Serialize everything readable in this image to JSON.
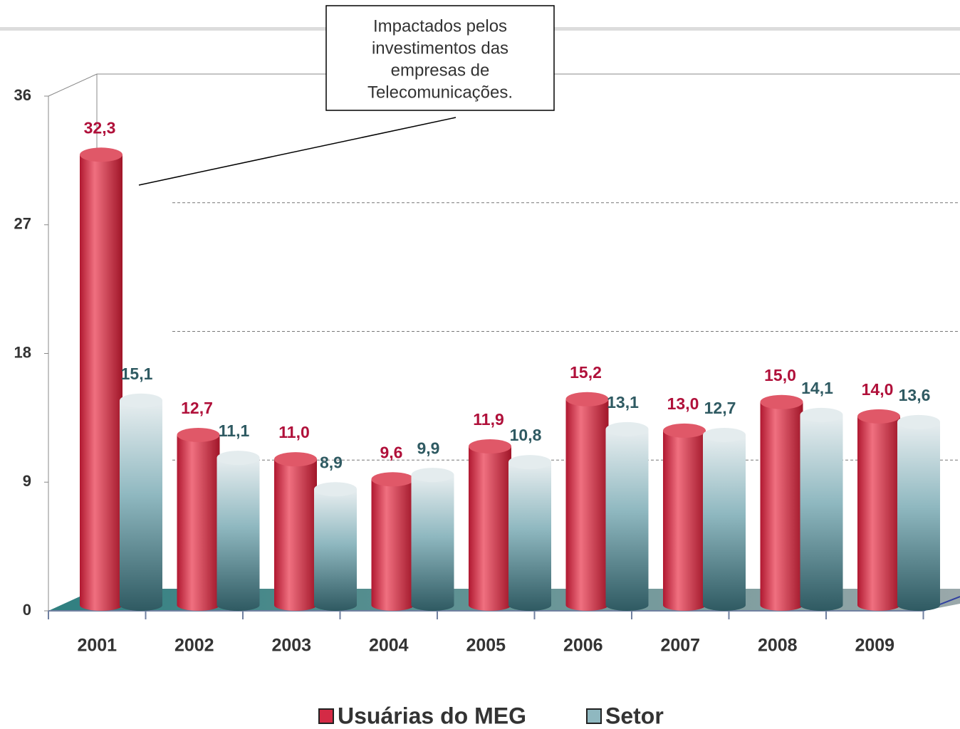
{
  "chart_data": {
    "type": "bar",
    "categories": [
      "2001",
      "2002",
      "2003",
      "2004",
      "2005",
      "2006",
      "2007",
      "2008",
      "2009"
    ],
    "series": [
      {
        "name": "Usuárias do MEG",
        "color": "#d42a45",
        "values": [
          32.3,
          12.7,
          11.0,
          9.6,
          11.9,
          15.2,
          13.0,
          15.0,
          14.0
        ],
        "value_labels": [
          "32,3",
          "12,7",
          "11,0",
          "9,6",
          "11,9",
          "15,2",
          "13,0",
          "15,0",
          "14,0"
        ]
      },
      {
        "name": "Setor",
        "color": "#4f8a94",
        "values": [
          15.1,
          11.1,
          8.9,
          9.9,
          10.8,
          13.1,
          12.7,
          14.1,
          13.6
        ],
        "value_labels": [
          "15,1",
          "11,1",
          "8,9",
          "9,9",
          "10,8",
          "13,1",
          "12,7",
          "14,1",
          "13,6"
        ]
      }
    ],
    "ylim": [
      0,
      36
    ],
    "yticks": [
      0,
      9,
      18,
      27,
      36
    ],
    "grid": true,
    "annotation": [
      "Impactados pelos",
      "investimentos das",
      "empresas de",
      "Telecomunicações."
    ]
  }
}
